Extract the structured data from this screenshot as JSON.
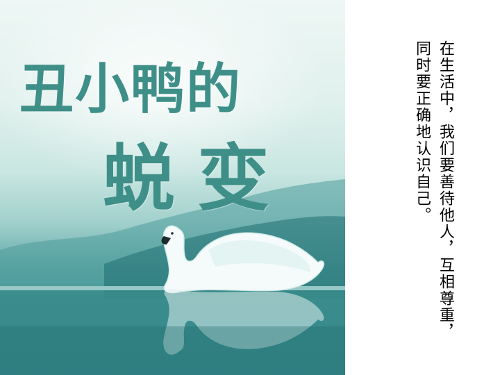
{
  "slide": {
    "title_line1": "丑小鸭的",
    "title_line2": "蜕变",
    "body_text": "在生活中，我们要善待他人，互相尊重，同时要正确地认识自己。"
  },
  "colors": {
    "title": "#3f8f89",
    "water": "#2f7c7e",
    "swan": "#f4fbfa"
  },
  "icons": {
    "illustration": "swan-icon"
  }
}
